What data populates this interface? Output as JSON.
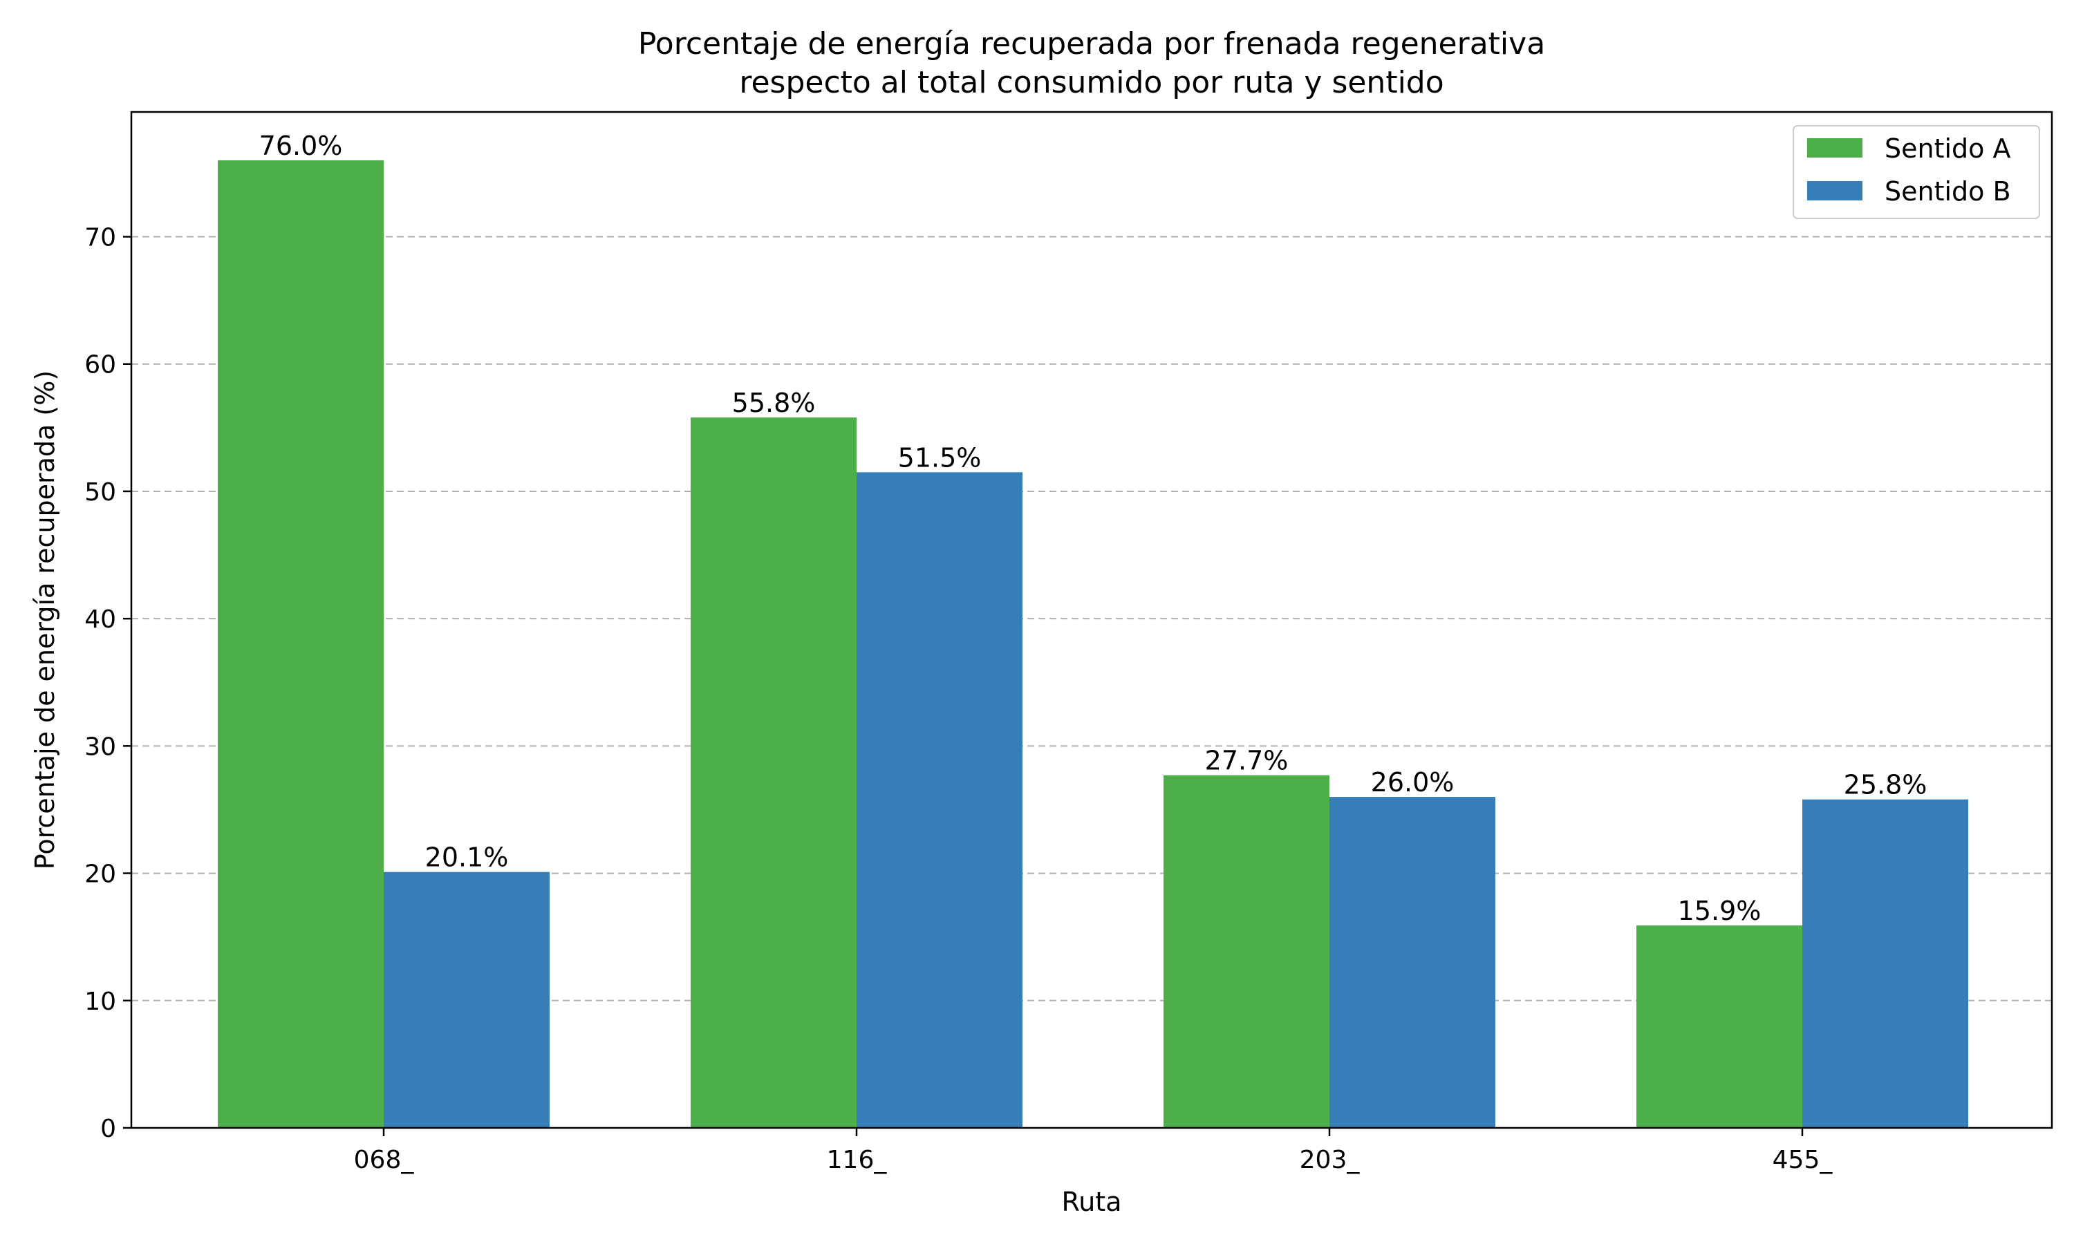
{
  "chart_data": {
    "type": "bar",
    "title_lines": [
      "Porcentaje de energía recuperada por frenada regenerativa",
      "respecto al total consumido por ruta y sentido"
    ],
    "xlabel": "Ruta",
    "ylabel": "Porcentaje de energía recuperada (%)",
    "categories": [
      "068_",
      "116_",
      "203_",
      "455_"
    ],
    "series": [
      {
        "name": "Sentido A",
        "color": "#4daf4a",
        "values": [
          76.0,
          55.8,
          27.7,
          15.9
        ],
        "labels": [
          "76.0%",
          "55.8%",
          "27.7%",
          "15.9%"
        ]
      },
      {
        "name": "Sentido B",
        "color": "#377eb8",
        "values": [
          20.1,
          51.5,
          26.0,
          25.8
        ],
        "labels": [
          "20.1%",
          "51.5%",
          "26.0%",
          "25.8%"
        ]
      }
    ],
    "ylim": [
      0,
      79.8
    ],
    "yticks": [
      0,
      10,
      20,
      30,
      40,
      50,
      60,
      70
    ],
    "ytick_labels": [
      "0",
      "10",
      "20",
      "30",
      "40",
      "50",
      "60",
      "70"
    ],
    "grid": "y dashed",
    "legend_position": "top-right"
  }
}
